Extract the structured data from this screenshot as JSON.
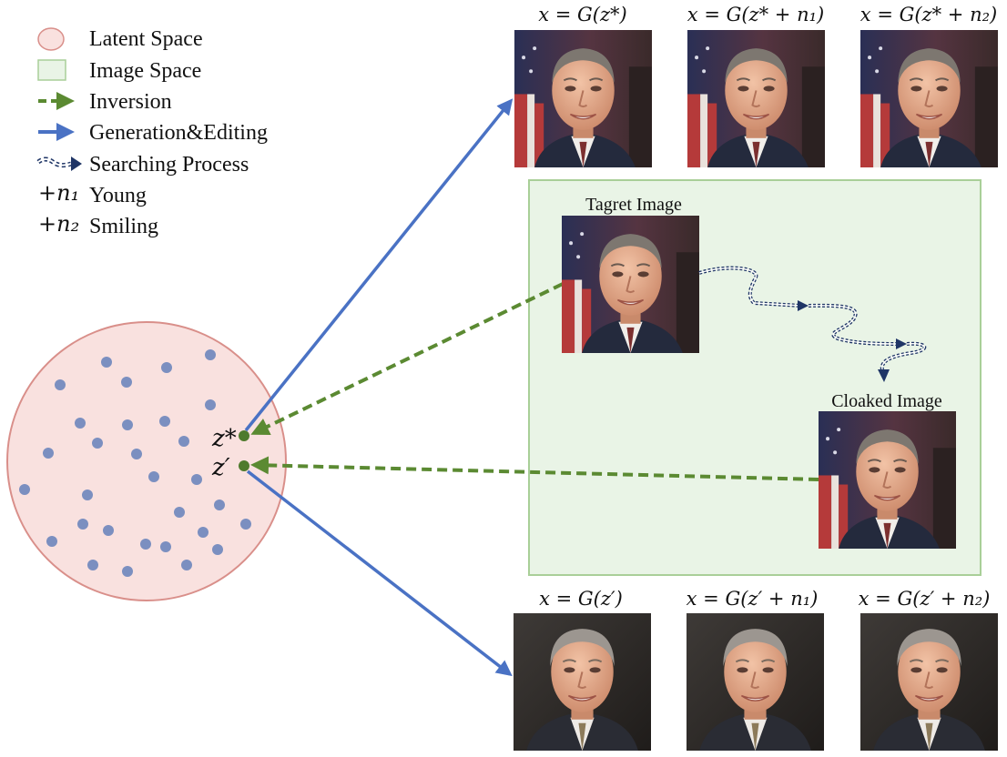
{
  "legend": {
    "latent_space": "Latent Space",
    "image_space": "Image Space",
    "inversion": "Inversion",
    "generation_editing": "Generation&Editing",
    "searching_process": "Searching Process",
    "young_symbol": "+n₁",
    "young": "Young",
    "smiling_symbol": "+n₂",
    "smiling": "Smiling"
  },
  "top_captions": [
    "x = G(z*)",
    "x = G(z* + n₁)",
    "x = G(z* + n₂)"
  ],
  "bottom_captions": [
    "x = G(z′)",
    "x = G(z′ + n₁)",
    "x = G(z′ + n₂)"
  ],
  "image_labels": {
    "target": "Tagret Image",
    "cloaked": "Cloaked Image"
  },
  "latent_labels": {
    "z_star": "z*",
    "z_prime": "z′"
  },
  "colors": {
    "latent_fill": "#f9e1df",
    "latent_stroke": "#d98f8a",
    "image_space_fill": "#e9f4e6",
    "image_space_stroke": "#a9cf98",
    "dot": "#7b8fc0",
    "z_point": "#4e7a2c",
    "inversion_arrow": "#5b8a32",
    "generation_arrow": "#4a72c4",
    "search_path": "#1f3566"
  },
  "icons": [
    "face-photo",
    "flag-background",
    "dashed-arrow",
    "solid-arrow",
    "double-dashed-arrow"
  ]
}
